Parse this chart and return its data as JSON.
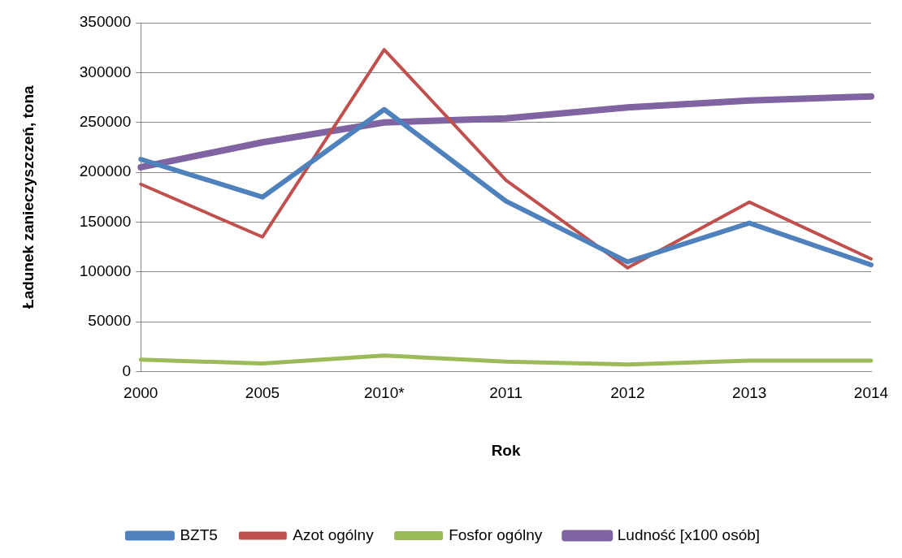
{
  "chart_data": {
    "type": "line",
    "xlabel": "Rok",
    "ylabel": "Ładunek zanieczyszczeń, tona",
    "categories": [
      "2000",
      "2005",
      "2010*",
      "2011",
      "2012",
      "2013",
      "2014"
    ],
    "series": [
      {
        "name": "BZT5",
        "color": "#4f81bd",
        "values": [
          213000,
          175000,
          263000,
          171000,
          110000,
          149000,
          107000
        ]
      },
      {
        "name": "Azot ogólny",
        "color": "#c0504d",
        "values": [
          188000,
          135000,
          323000,
          192000,
          104000,
          170000,
          113000
        ]
      },
      {
        "name": "Fosfor ogólny",
        "color": "#9bbb59",
        "values": [
          12000,
          8000,
          16000,
          10000,
          7000,
          11000,
          11000
        ]
      },
      {
        "name": "Ludność [x100 osób]",
        "color": "#8064a2",
        "values": [
          205000,
          230000,
          250000,
          254000,
          265000,
          272000,
          276000
        ]
      }
    ],
    "ylim": [
      0,
      350000
    ],
    "yticks": [
      0,
      50000,
      100000,
      150000,
      200000,
      250000,
      300000,
      350000
    ],
    "grid": "y",
    "legend": "bottom",
    "marker": "none",
    "line_style": "solid"
  }
}
